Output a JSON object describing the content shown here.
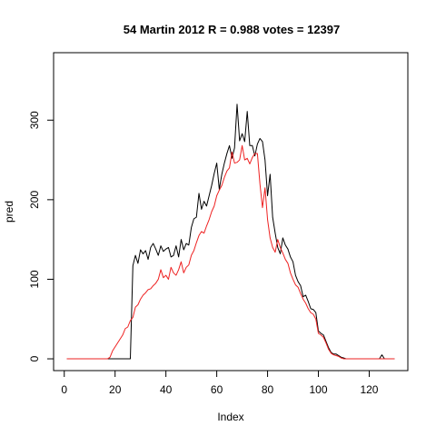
{
  "chart_data": {
    "type": "line",
    "title": "54 Martin 2012 R = 0.988 votes = 12397",
    "xlabel": "Index",
    "ylabel": "pred",
    "xlim": [
      1,
      130
    ],
    "ylim": [
      0,
      370
    ],
    "xticks": [
      0,
      20,
      40,
      60,
      80,
      100,
      120
    ],
    "yticks": [
      0,
      100,
      200,
      300
    ],
    "grid": false,
    "legend": "none",
    "series": [
      {
        "color": "#000000",
        "x": [
          1,
          2,
          3,
          4,
          5,
          6,
          7,
          8,
          9,
          10,
          11,
          12,
          13,
          14,
          15,
          16,
          17,
          18,
          19,
          20,
          21,
          22,
          23,
          24,
          25,
          26,
          27,
          28,
          29,
          30,
          31,
          32,
          33,
          34,
          35,
          36,
          37,
          38,
          39,
          40,
          41,
          42,
          43,
          44,
          45,
          46,
          47,
          48,
          49,
          50,
          51,
          52,
          53,
          54,
          55,
          56,
          57,
          58,
          59,
          60,
          61,
          62,
          63,
          64,
          65,
          66,
          67,
          68,
          69,
          70,
          71,
          72,
          73,
          74,
          75,
          76,
          77,
          78,
          79,
          80,
          81,
          82,
          83,
          84,
          85,
          86,
          87,
          88,
          89,
          90,
          91,
          92,
          93,
          94,
          95,
          96,
          97,
          98,
          99,
          100,
          101,
          102,
          103,
          104,
          105,
          106,
          107,
          108,
          109,
          110,
          111,
          112,
          113,
          114,
          115,
          116,
          117,
          118,
          119,
          120,
          121,
          122,
          123,
          124,
          125,
          126,
          127,
          128,
          129,
          130
        ],
        "y": [
          0,
          0,
          0,
          0,
          0,
          0,
          0,
          0,
          0,
          0,
          0,
          0,
          0,
          0,
          0,
          0,
          0,
          0,
          0,
          0,
          0,
          0,
          0,
          0,
          0,
          0,
          117,
          130,
          120,
          137,
          132,
          136,
          125,
          140,
          145,
          138,
          130,
          142,
          135,
          138,
          140,
          128,
          130,
          142,
          128,
          150,
          137,
          145,
          143,
          165,
          176,
          178,
          208,
          188,
          198,
          192,
          205,
          218,
          233,
          246,
          213,
          232,
          246,
          258,
          268,
          252,
          265,
          320,
          274,
          283,
          273,
          311,
          268,
          268,
          255,
          270,
          277,
          273,
          250,
          205,
          232,
          178,
          158,
          140,
          132,
          152,
          143,
          138,
          128,
          122,
          105,
          97,
          92,
          78,
          80,
          72,
          63,
          62,
          58,
          35,
          32,
          30,
          22,
          14,
          8,
          6,
          6,
          4,
          2,
          1,
          0,
          0,
          0,
          0,
          0,
          0,
          0,
          0,
          0,
          0,
          0,
          0,
          0,
          0,
          5,
          0,
          0,
          0,
          0,
          0
        ]
      },
      {
        "color": "#ee2222",
        "x": [
          1,
          2,
          3,
          4,
          5,
          6,
          7,
          8,
          9,
          10,
          11,
          12,
          13,
          14,
          15,
          16,
          17,
          18,
          19,
          20,
          21,
          22,
          23,
          24,
          25,
          26,
          27,
          28,
          29,
          30,
          31,
          32,
          33,
          34,
          35,
          36,
          37,
          38,
          39,
          40,
          41,
          42,
          43,
          44,
          45,
          46,
          47,
          48,
          49,
          50,
          51,
          52,
          53,
          54,
          55,
          56,
          57,
          58,
          59,
          60,
          61,
          62,
          63,
          64,
          65,
          66,
          67,
          68,
          69,
          70,
          71,
          72,
          73,
          74,
          75,
          76,
          77,
          78,
          79,
          80,
          81,
          82,
          83,
          84,
          85,
          86,
          87,
          88,
          89,
          90,
          91,
          92,
          93,
          94,
          95,
          96,
          97,
          98,
          99,
          100,
          101,
          102,
          103,
          104,
          105,
          106,
          107,
          108,
          109,
          110,
          111,
          112,
          113,
          114,
          115,
          116,
          117,
          118,
          119,
          120,
          121,
          122,
          123,
          124,
          125,
          126,
          127,
          128,
          129,
          130
        ],
        "y": [
          0,
          0,
          0,
          0,
          0,
          0,
          0,
          0,
          0,
          0,
          0,
          0,
          0,
          0,
          0,
          0,
          0,
          2,
          10,
          15,
          20,
          25,
          30,
          38,
          40,
          48,
          52,
          65,
          68,
          75,
          80,
          83,
          87,
          88,
          92,
          95,
          100,
          112,
          102,
          105,
          100,
          115,
          108,
          105,
          112,
          122,
          108,
          115,
          118,
          130,
          136,
          146,
          155,
          160,
          158,
          167,
          175,
          185,
          192,
          205,
          212,
          218,
          228,
          236,
          240,
          260,
          246,
          247,
          250,
          268,
          250,
          252,
          245,
          253,
          258,
          258,
          220,
          190,
          215,
          175,
          152,
          140,
          134,
          150,
          140,
          133,
          125,
          120,
          108,
          100,
          93,
          90,
          82,
          75,
          70,
          63,
          58,
          56,
          50,
          32,
          30,
          27,
          20,
          12,
          7,
          5,
          4,
          3,
          1,
          0,
          0,
          0,
          0,
          0,
          0,
          0,
          0,
          0,
          0,
          0,
          0,
          0,
          0,
          0,
          0,
          0,
          0,
          0,
          0,
          0
        ]
      }
    ]
  }
}
